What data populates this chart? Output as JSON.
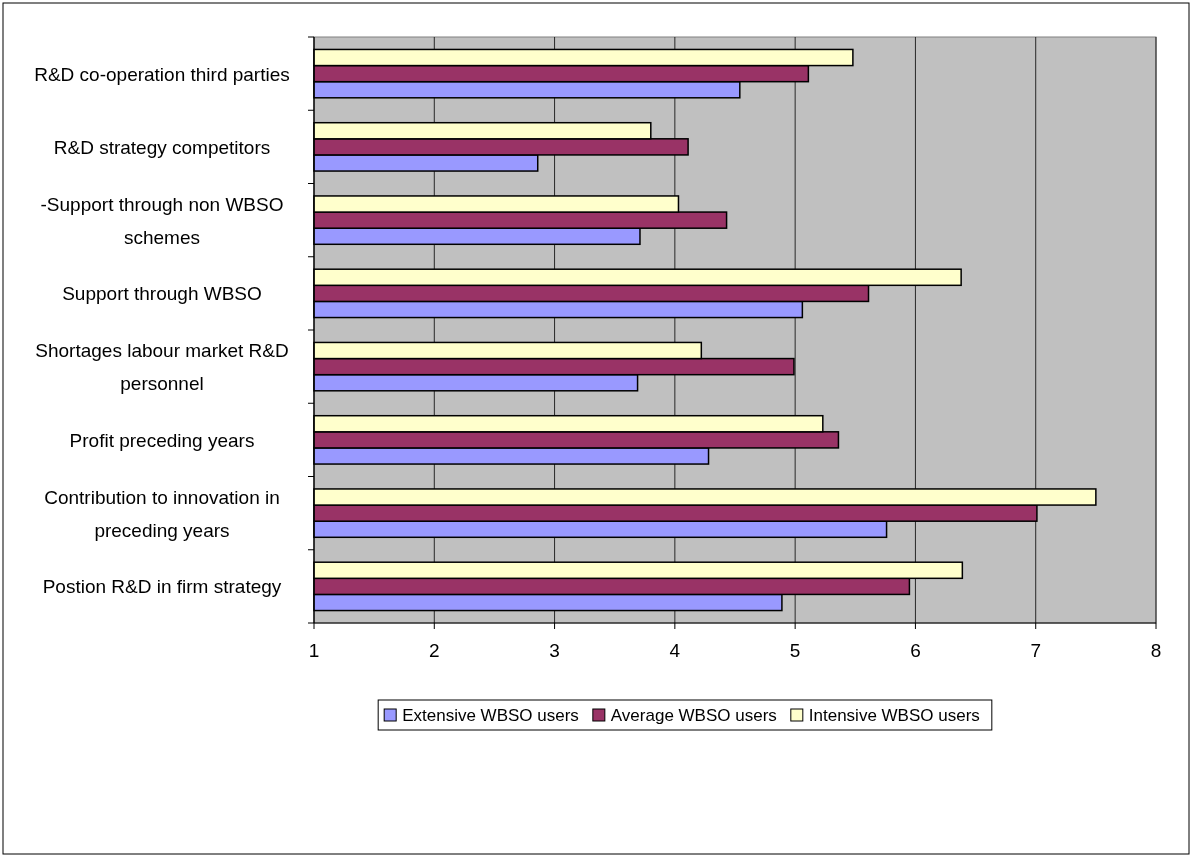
{
  "chart_data": {
    "type": "bar",
    "orientation": "horizontal",
    "categories": [
      "R&D co-operation third parties",
      "R&D strategy competitors",
      "-Support through non WBSO schemes",
      "Support through WBSO",
      "Shortages labour market R&D personnel",
      "Profit preceding years",
      "Contribution to innovation in preceding years",
      "Postion R&D in firm strategy"
    ],
    "series": [
      {
        "name": "Extensive WBSO users",
        "color": "#9999ff",
        "values": [
          4.54,
          2.86,
          3.71,
          5.06,
          3.69,
          4.28,
          5.76,
          4.89
        ]
      },
      {
        "name": "Average WBSO users",
        "color": "#993366",
        "values": [
          5.11,
          4.11,
          4.43,
          5.61,
          4.99,
          5.36,
          7.01,
          5.95
        ]
      },
      {
        "name": "Intensive WBSO users",
        "color": "#ffffcc",
        "values": [
          5.48,
          3.8,
          4.03,
          6.38,
          4.22,
          5.23,
          7.5,
          6.39
        ]
      }
    ],
    "xlim": [
      1,
      8
    ],
    "xticks": [
      1,
      2,
      3,
      4,
      5,
      6,
      7,
      8
    ],
    "grid": "x",
    "legend": "bottom"
  }
}
